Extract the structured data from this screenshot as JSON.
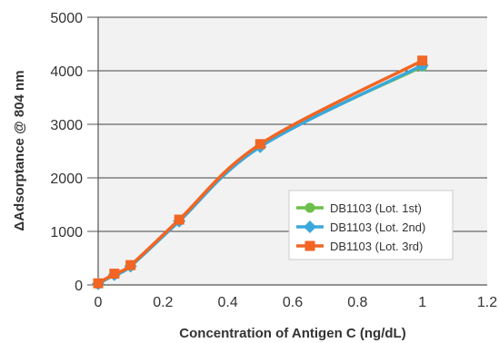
{
  "chart_data": {
    "type": "line",
    "title": "",
    "xlabel": "Concentration of Antigen C (ng/dL)",
    "ylabel": "ΔAdsorptance @ 804 nm",
    "xlim": [
      0,
      1.2
    ],
    "ylim": [
      0,
      5000
    ],
    "x_ticks": [
      "0",
      "0.2",
      "0.4",
      "0.6",
      "0.8",
      "1",
      "1.2"
    ],
    "y_ticks": [
      "0",
      "1000",
      "2000",
      "3000",
      "4000",
      "5000"
    ],
    "grid": "horizontal",
    "plot_background": "#f2f2f2",
    "legend_position": "inside-lower-right",
    "series": [
      {
        "name": "DB1103 (Lot. 1st)",
        "color": "#6cc04a",
        "marker": "circle",
        "x": [
          0,
          0.05,
          0.1,
          0.25,
          0.5,
          1
        ],
        "y": [
          20,
          200,
          360,
          1200,
          2600,
          4080
        ]
      },
      {
        "name": "DB1103 (Lot. 2nd)",
        "color": "#3aa8dc",
        "marker": "diamond",
        "x": [
          0,
          0.05,
          0.1,
          0.25,
          0.5,
          1
        ],
        "y": [
          20,
          190,
          350,
          1190,
          2580,
          4100
        ]
      },
      {
        "name": "DB1103 (Lot. 3rd)",
        "color": "#f26522",
        "marker": "square",
        "x": [
          0,
          0.05,
          0.1,
          0.25,
          0.5,
          1
        ],
        "y": [
          30,
          210,
          370,
          1220,
          2630,
          4190
        ]
      }
    ]
  }
}
